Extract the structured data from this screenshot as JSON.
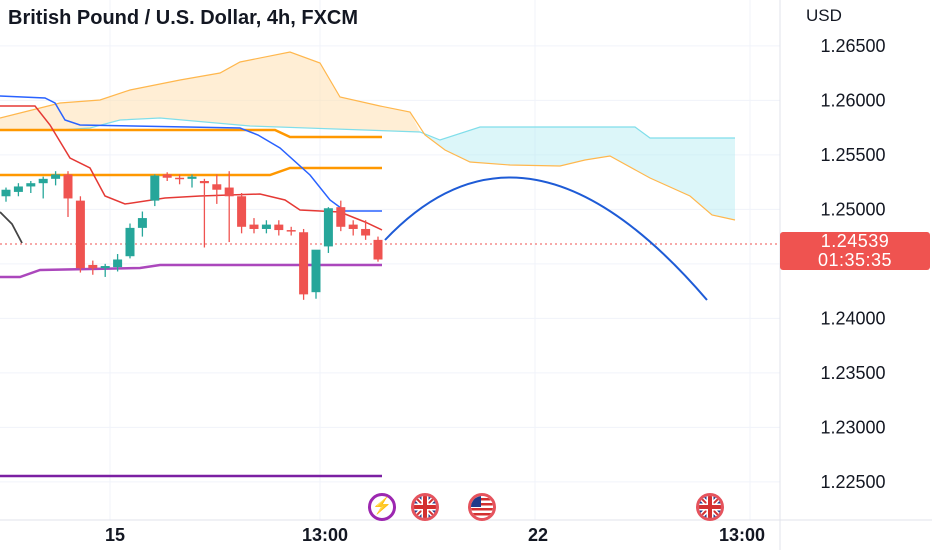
{
  "header": {
    "title": "British Pound / U.S. Dollar, 4h, FXCM",
    "currency": "USD"
  },
  "price_tag": {
    "price": "1.24539",
    "countdown": "01:35:35"
  },
  "events": [
    {
      "name": "flash-event",
      "icon": "lightning-icon",
      "glyph": "⚡"
    },
    {
      "name": "uk-event-1",
      "icon": "uk-flag-icon"
    },
    {
      "name": "us-event",
      "icon": "us-flag-icon"
    },
    {
      "name": "uk-event-2",
      "icon": "uk-flag-icon"
    }
  ],
  "chart_data": {
    "type": "candlestick",
    "symbol": "British Pound / U.S. Dollar",
    "interval": "4h",
    "source": "FXCM",
    "y_axis": {
      "label": "USD",
      "ticks": [
        "1.26500",
        "1.26000",
        "1.25500",
        "1.25000",
        "1.24500",
        "1.24000",
        "1.23500",
        "1.23000",
        "1.22500"
      ],
      "range": [
        1.2205,
        1.2655
      ]
    },
    "x_axis": {
      "ticks": [
        "15",
        "13:00",
        "22",
        "13:00"
      ]
    },
    "last_price": 1.24539,
    "colors": {
      "up": "#26a69a",
      "down": "#ef5350",
      "cloud_up": "#ffe0b2",
      "cloud_down": "#b2ebf2",
      "conversion": "#2962ff",
      "base": "#e53935",
      "level_orange": "#ff9800",
      "level_purple_light": "#ab47bc",
      "level_purple_dark": "#7b1fa2",
      "projection": "#1e5bd6"
    },
    "candles": [
      {
        "o": 1.2512,
        "h": 1.252,
        "l": 1.2507,
        "c": 1.2518
      },
      {
        "o": 1.2516,
        "h": 1.2524,
        "l": 1.2512,
        "c": 1.2521
      },
      {
        "o": 1.2521,
        "h": 1.2526,
        "l": 1.2515,
        "c": 1.2524
      },
      {
        "o": 1.2524,
        "h": 1.253,
        "l": 1.251,
        "c": 1.2528
      },
      {
        "o": 1.2528,
        "h": 1.2535,
        "l": 1.2522,
        "c": 1.2532
      },
      {
        "o": 1.2532,
        "h": 1.2535,
        "l": 1.2493,
        "c": 1.251
      },
      {
        "o": 1.2508,
        "h": 1.2512,
        "l": 1.2442,
        "c": 1.2446
      },
      {
        "o": 1.2449,
        "h": 1.2453,
        "l": 1.244,
        "c": 1.2446
      },
      {
        "o": 1.2446,
        "h": 1.245,
        "l": 1.2438,
        "c": 1.2448
      },
      {
        "o": 1.2447,
        "h": 1.2459,
        "l": 1.2443,
        "c": 1.2454
      },
      {
        "o": 1.2457,
        "h": 1.2487,
        "l": 1.2455,
        "c": 1.2483
      },
      {
        "o": 1.2483,
        "h": 1.2498,
        "l": 1.2475,
        "c": 1.2492
      },
      {
        "o": 1.2508,
        "h": 1.2532,
        "l": 1.2503,
        "c": 1.2531
      },
      {
        "o": 1.2532,
        "h": 1.2534,
        "l": 1.2526,
        "c": 1.2529
      },
      {
        "o": 1.2529,
        "h": 1.2532,
        "l": 1.2523,
        "c": 1.2528
      },
      {
        "o": 1.2528,
        "h": 1.2532,
        "l": 1.252,
        "c": 1.253
      },
      {
        "o": 1.2526,
        "h": 1.2528,
        "l": 1.2465,
        "c": 1.2524
      },
      {
        "o": 1.2523,
        "h": 1.2532,
        "l": 1.2505,
        "c": 1.2518
      },
      {
        "o": 1.252,
        "h": 1.2535,
        "l": 1.247,
        "c": 1.2512
      },
      {
        "o": 1.2512,
        "h": 1.2515,
        "l": 1.2478,
        "c": 1.2484
      },
      {
        "o": 1.2486,
        "h": 1.2492,
        "l": 1.2478,
        "c": 1.2482
      },
      {
        "o": 1.2482,
        "h": 1.249,
        "l": 1.2478,
        "c": 1.2486
      },
      {
        "o": 1.2486,
        "h": 1.249,
        "l": 1.2476,
        "c": 1.2481
      },
      {
        "o": 1.2481,
        "h": 1.2484,
        "l": 1.2476,
        "c": 1.248
      },
      {
        "o": 1.2479,
        "h": 1.2482,
        "l": 1.2417,
        "c": 1.2422
      },
      {
        "o": 1.2424,
        "h": 1.2462,
        "l": 1.2418,
        "c": 1.2463
      },
      {
        "o": 1.2466,
        "h": 1.2502,
        "l": 1.246,
        "c": 1.2501
      },
      {
        "o": 1.2502,
        "h": 1.2508,
        "l": 1.248,
        "c": 1.2484
      },
      {
        "o": 1.2486,
        "h": 1.249,
        "l": 1.2476,
        "c": 1.2482
      },
      {
        "o": 1.2482,
        "h": 1.249,
        "l": 1.2472,
        "c": 1.2476
      },
      {
        "o": 1.2472,
        "h": 1.2475,
        "l": 1.2452,
        "c": 1.2454
      }
    ]
  }
}
